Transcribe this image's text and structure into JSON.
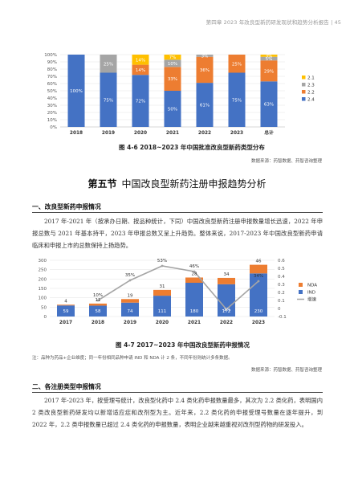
{
  "header": {
    "text": "第四章  2023 年改良型新药研发现状和趋势分析报告 | 45"
  },
  "figure1": {
    "caption": "图 4-6   2018~2023 年中国批准改良型新药类型分布",
    "source": "数据来源：药智数据、药智咨询整理",
    "chart_data": {
      "type": "bar",
      "stacked": true,
      "percent": true,
      "categories": [
        "2018",
        "2019",
        "2020",
        "2021",
        "2022",
        "2023",
        "总计"
      ],
      "yticks": [
        "0%",
        "10%",
        "20%",
        "30%",
        "40%",
        "50%",
        "60%",
        "70%",
        "80%",
        "90%",
        "100%"
      ],
      "ylim": [
        0,
        100
      ],
      "legend_position": "right",
      "series": [
        {
          "name": "2.4",
          "color": "#4472c4",
          "values": [
            100,
            75,
            72,
            50,
            61,
            75,
            63
          ],
          "labels": [
            "100%",
            "75%",
            "72%",
            "50%",
            "61%",
            "75%",
            "63%"
          ]
        },
        {
          "name": "2.2",
          "color": "#ed7d31",
          "values": [
            0,
            0,
            14,
            33,
            36,
            25,
            29
          ],
          "labels": [
            "",
            "",
            "14%",
            "33%",
            "36%",
            "25%",
            "29%"
          ]
        },
        {
          "name": "2.3",
          "color": "#a5a5a5",
          "values": [
            0,
            25,
            0,
            10,
            3,
            0,
            5
          ],
          "labels": [
            "",
            "25%",
            "",
            "10%",
            "3%",
            "",
            "5%"
          ]
        },
        {
          "name": "2.1",
          "color": "#ffc000",
          "values": [
            0,
            0,
            14,
            7,
            0,
            0,
            3
          ],
          "labels": [
            "",
            "",
            "14%",
            "7%",
            "",
            "",
            "3%"
          ]
        }
      ]
    }
  },
  "section5": {
    "num": "第五节",
    "title": "中国改良型新药注册申报趋势分析"
  },
  "sub1": {
    "title": "一、改良型新药申报情况",
    "para": "2017 年-2021 年（按承办日期、按品种统计，下同）中国改良型新药注册申报数量增长迅速，2022 年申报总数与 2021 年基本持平，2023 年申报总数又呈上升趋势。整体来说，2017-2023 年中国改良型新药申请临床和申报上市的总数保持上扬趋势。"
  },
  "figure2": {
    "caption": "图 4-7    2017~2023 年中国改良型新药申报情况",
    "note": "注：品种为药品+企业维度；同一年份相同品种申请 IND 和 NDA 计 2 条，不同年份则统计多条数据。",
    "source": "数据来源：药智数据、药智咨询整理",
    "chart_data": {
      "type": "bar",
      "stacked": true,
      "categories": [
        "2017",
        "2018",
        "2019",
        "2020",
        "2021",
        "2022",
        "2023"
      ],
      "left_yticks": [
        "0",
        "50",
        "100",
        "150",
        "200",
        "250",
        "300"
      ],
      "left_ylim": [
        0,
        300
      ],
      "right_yticks": [
        "-0.1",
        "0",
        "0.1",
        "0.2",
        "0.3",
        "0.4",
        "0.5",
        "0.6"
      ],
      "right_ylim": [
        -0.1,
        0.6
      ],
      "legend_position": "right",
      "series": [
        {
          "name": "IND",
          "color": "#4472c4",
          "values": [
            59,
            58,
            74,
            111,
            180,
            172,
            230
          ]
        },
        {
          "name": "NDA",
          "color": "#ed7d31",
          "values": [
            4,
            11,
            19,
            31,
            28,
            34,
            46
          ]
        },
        {
          "name": "增速",
          "type": "line",
          "color": "#a5a5a5",
          "values": [
            null,
            0.1,
            0.35,
            0.53,
            0.46,
            -0.01,
            0.34
          ],
          "labels": [
            "",
            "10%",
            "35%",
            "53%",
            "46%",
            "-1%",
            "34%"
          ]
        }
      ]
    }
  },
  "sub2": {
    "title": "二、各注册类型申报情况",
    "para": "2017 年-2023 年，按受理号统计，改良型化药中 2.4 类化药申报数量最多，其次为 2.2 类化药，表明国内 2 类改良型新药研发均以新增适应症和改剂型为主。近年来，2.2 类化药的申报受理号数量在逐年提升，到 2022 年，2.2 类申报数量已超过 2.4 类化药的申报数量，表明企业越来越重视对改剂型药物的研发投入。"
  }
}
